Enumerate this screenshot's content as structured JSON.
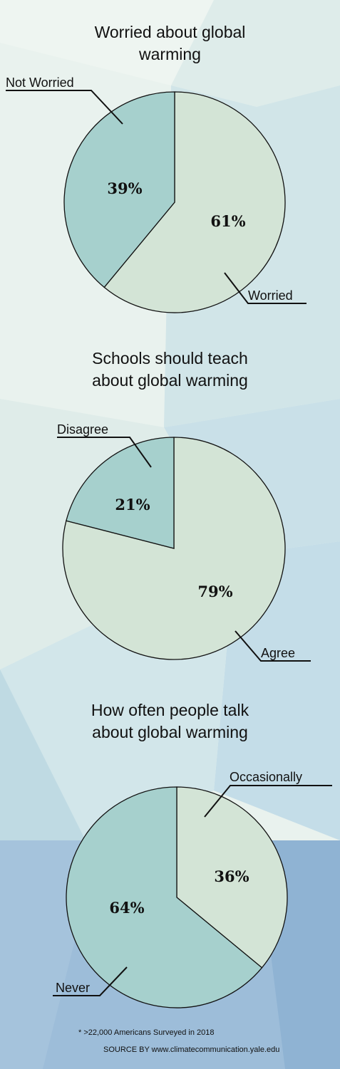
{
  "chart_data": [
    {
      "type": "pie",
      "title_lines": [
        "Worried about global",
        "warming"
      ],
      "slices": [
        {
          "label": "Worried",
          "value": 61,
          "display": "61%",
          "color": "#d3e4d6"
        },
        {
          "label": "Not Worried",
          "value": 39,
          "display": "39%",
          "color": "#a6d0cd"
        }
      ]
    },
    {
      "type": "pie",
      "title_lines": [
        "Schools should teach",
        "about global warming"
      ],
      "slices": [
        {
          "label": "Agree",
          "value": 79,
          "display": "79%",
          "color": "#d3e4d6"
        },
        {
          "label": "Disagree",
          "value": 21,
          "display": "21%",
          "color": "#a6d0cd"
        }
      ]
    },
    {
      "type": "pie",
      "title_lines": [
        "How often people talk",
        "about global warming"
      ],
      "slices": [
        {
          "label": "Occasionally",
          "value": 36,
          "display": "36%",
          "color": "#d3e4d6"
        },
        {
          "label": "Never",
          "value": 64,
          "display": "64%",
          "color": "#a6d0cd"
        }
      ]
    }
  ],
  "footnote": {
    "survey_note": "* >22,000 Americans Surveyed in 2018",
    "source": "SOURCE BY www.climatecommunication.yale.edu"
  }
}
